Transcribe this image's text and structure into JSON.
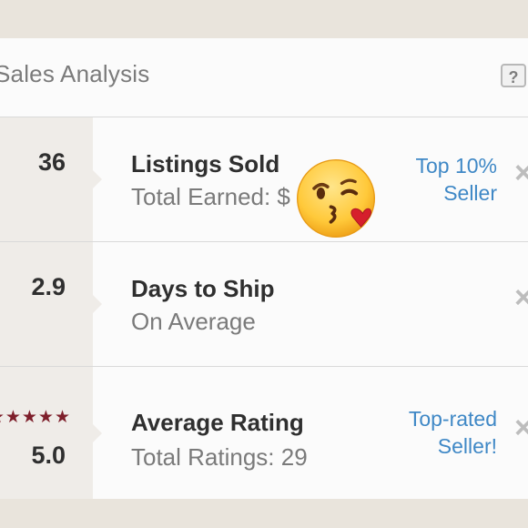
{
  "header": {
    "title": "Sales Analysis",
    "help_label": "?"
  },
  "rows": [
    {
      "value": "36",
      "label": "Listings Sold",
      "sublabel": "Total Earned: $",
      "badge_line1": "Top 10%",
      "badge_line2": "Seller"
    },
    {
      "value": "2.9",
      "label": "Days to Ship",
      "sublabel": "On Average",
      "badge_line1": "",
      "badge_line2": ""
    },
    {
      "value": "5.0",
      "label": "Average Rating",
      "sublabel": "Total Ratings: 29",
      "badge_line1": "Top-rated",
      "badge_line2": "Seller!",
      "stars": "★★★★★"
    }
  ],
  "icons": {
    "close": "close-icon",
    "emoji": "kissing-face-emoji-icon",
    "help": "help-icon"
  },
  "colors": {
    "link": "#3f88c6",
    "stars": "#7e1f2b"
  }
}
